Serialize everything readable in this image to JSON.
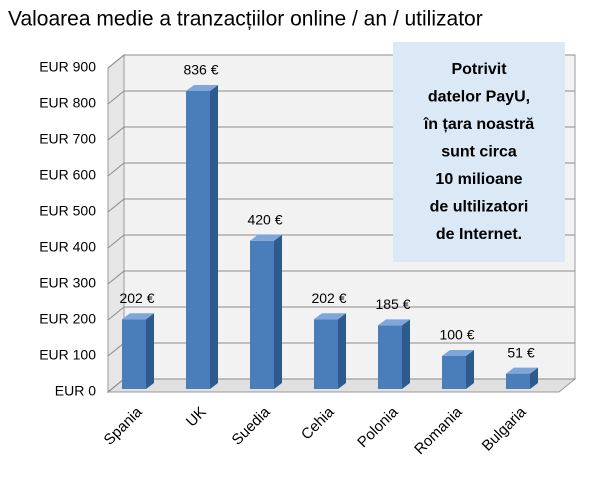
{
  "chart_data": {
    "type": "bar",
    "title": "Valoarea medie a tranzacțiilor online / an / utilizator",
    "categories": [
      "Spania",
      "UK",
      "Suedia",
      "Cehia",
      "Polonia",
      "Romania",
      "Bulgaria"
    ],
    "values": [
      202,
      836,
      420,
      202,
      185,
      100,
      51
    ],
    "value_labels": [
      "202 €",
      "836 €",
      "420 €",
      "202 €",
      "185 €",
      "100 €",
      "51 €"
    ],
    "color": "#4a7ebb",
    "ylim": [
      0,
      900
    ],
    "yticks": [
      {
        "value": 0,
        "label": "EUR 0"
      },
      {
        "value": 100,
        "label": "EUR 100"
      },
      {
        "value": 200,
        "label": "EUR 200"
      },
      {
        "value": 300,
        "label": "EUR 300"
      },
      {
        "value": 400,
        "label": "EUR 400"
      },
      {
        "value": 500,
        "label": "EUR 500"
      },
      {
        "value": 600,
        "label": "EUR 600"
      },
      {
        "value": 700,
        "label": "EUR 700"
      },
      {
        "value": 800,
        "label": "EUR 800"
      },
      {
        "value": 900,
        "label": "EUR 900"
      }
    ],
    "grid": true,
    "annotation": {
      "lines": [
        "Potrivit",
        "datelor PayU,",
        "în țara noastră",
        "sunt circa",
        "10 milioane",
        "de ultilizatori",
        "de Internet."
      ]
    }
  }
}
